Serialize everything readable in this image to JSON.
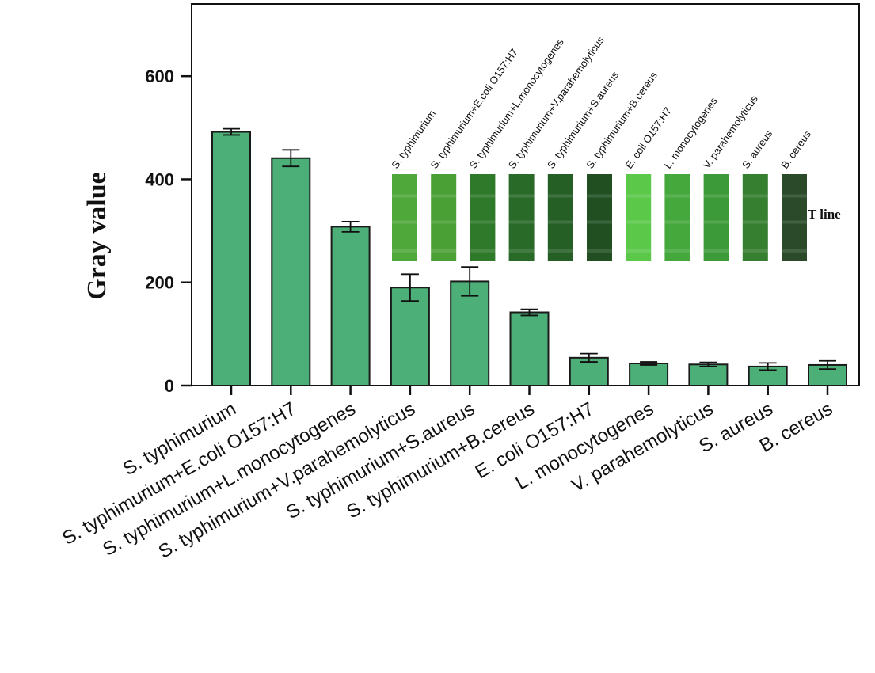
{
  "chart_data": {
    "type": "bar",
    "title": "",
    "xlabel": "",
    "ylabel": "Gray value",
    "ylim": [
      0,
      740
    ],
    "yticks": [
      0,
      200,
      400,
      600
    ],
    "grid": false,
    "bar_color": "#4caf78",
    "bar_edge_color": "#1a1a1a",
    "categories": [
      "S. typhimurium",
      "S. typhimurium+E.coli O157:H7",
      "S. typhimurium+L.monocytogenes",
      "S. typhimurium+V.parahemolyticus",
      "S. typhimurium+S.aureus",
      "S. typhimurium+B.cereus",
      "E. coli O157:H7",
      "L. monocytogenes",
      "V. parahemolyticus",
      "S. aureus",
      "B. cereus"
    ],
    "values": [
      492,
      441,
      308,
      190,
      202,
      142,
      54,
      43,
      41,
      37,
      40
    ],
    "errors": [
      6,
      16,
      10,
      26,
      28,
      6,
      8,
      3,
      4,
      7,
      8
    ]
  },
  "inset": {
    "strip_labels": [
      "S. typhimurium",
      "S. typhimurium+E.coli O157:H7",
      "S. typhimurium+L.monocytogenes",
      "S. typhimurium+V.parahemolyticus",
      "S. typhimurium+S.aureus",
      "S. typhimurium+B.cereus",
      "E. coli O157:H7",
      "L. monocytogenes",
      "V. parahemolyticus",
      "S. aureus",
      "B. cereus"
    ],
    "strip_colors": [
      "#4fa83a",
      "#4aa035",
      "#2f7a2a",
      "#2a6a28",
      "#255f26",
      "#214f22",
      "#5cc84a",
      "#45a83d",
      "#3d9a38",
      "#367f30",
      "#2a4a2a"
    ],
    "t_line_label": "T line"
  }
}
